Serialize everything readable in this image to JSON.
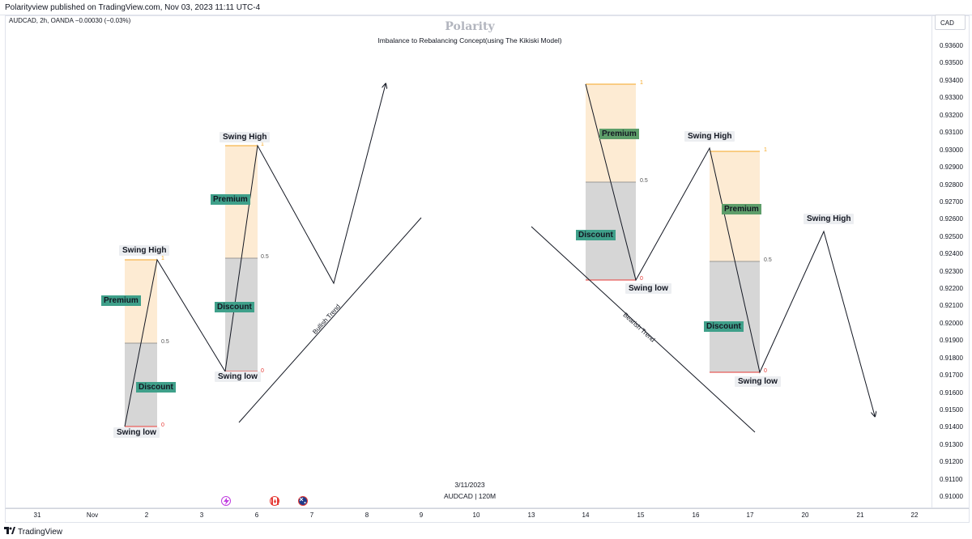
{
  "header": {
    "published_text": "Polarityview published on TradingView.com, Nov 03, 2023 11:11 UTC-4",
    "symbol_line": "AUDCAD, 2h, OANDA  −0.00030 (−0.03%)",
    "currency": "CAD"
  },
  "watermark": {
    "title": "Polarity",
    "subtitle": "Imbalance to Rebalancing Concept(using The Kikiski Model)",
    "date": "3/11/2023",
    "symbol": "AUDCAD | 120M"
  },
  "price_scale": [
    "0.93600",
    "0.93500",
    "0.93400",
    "0.93300",
    "0.93200",
    "0.93100",
    "0.93000",
    "0.92900",
    "0.92800",
    "0.92700",
    "0.92600",
    "0.92500",
    "0.92400",
    "0.92300",
    "0.92200",
    "0.92100",
    "0.92000",
    "0.91900",
    "0.91800",
    "0.91700",
    "0.91600",
    "0.91500",
    "0.91400",
    "0.91300",
    "0.91200",
    "0.91100",
    "0.91000"
  ],
  "time_axis": [
    "31",
    "Nov",
    "2",
    "3",
    "6",
    "7",
    "8",
    "9",
    "10",
    "13",
    "14",
    "15",
    "16",
    "17",
    "20",
    "21",
    "22"
  ],
  "drawings": {
    "swing_high": "Swing High",
    "swing_low": "Swing low",
    "premium": "Premium",
    "discount": "Discount",
    "fib_1": "1",
    "fib_05": "0.5",
    "fib_0": "0",
    "bullish_trend": "Bullish Trend",
    "bearish_trend": "Bearish Trend"
  },
  "colors": {
    "premium_zone": "#fdebd3",
    "discount_zone": "#d6d6d6",
    "teal_label": "#3fa08a",
    "green_label": "#5e9e6a",
    "fib_1": "#f5a623",
    "fib_0": "#e53935"
  },
  "footer": {
    "brand": "TradingView",
    "brand_icon": "tradingview-logo-icon"
  },
  "events": [
    "lightning-event-icon",
    "canada-flag-icon",
    "australia-flag-icon"
  ]
}
